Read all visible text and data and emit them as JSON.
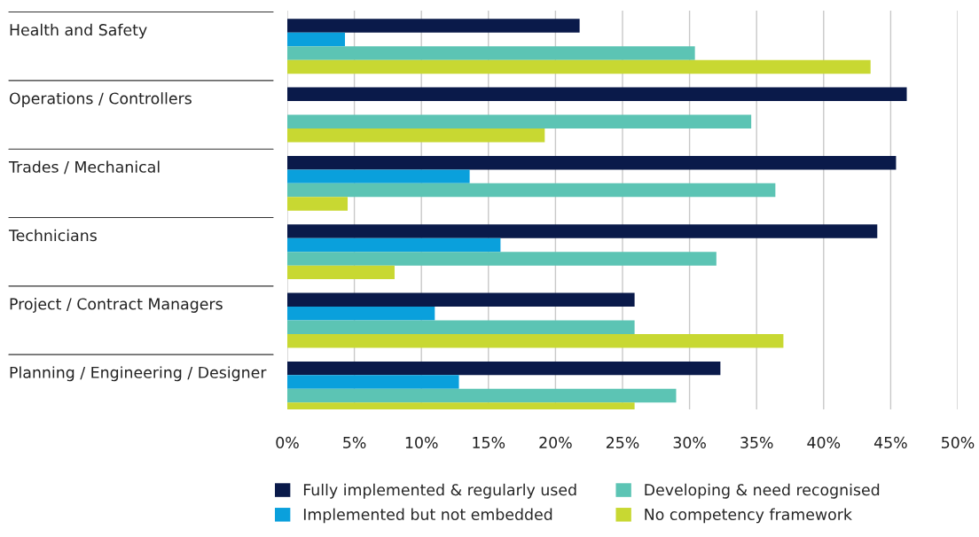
{
  "chart_data": {
    "type": "bar",
    "orientation": "horizontal",
    "categories": [
      "Health and Safety",
      "Operations / Controllers",
      "Trades / Mechanical",
      "Technicians",
      "Project / Contract Managers",
      "Planning / Engineering / Designer"
    ],
    "series": [
      {
        "name": "Fully implemented & regularly used",
        "color": "#0a1a4a",
        "values": [
          21.8,
          46.2,
          45.4,
          44.0,
          25.9,
          32.3
        ]
      },
      {
        "name": "Implemented but not embedded",
        "color": "#0aa0dc",
        "values": [
          4.3,
          null,
          13.6,
          15.9,
          11.0,
          12.8
        ]
      },
      {
        "name": "Developing & need recognised",
        "color": "#5cc4b4",
        "values": [
          30.4,
          34.6,
          36.4,
          32.0,
          25.9,
          29.0
        ]
      },
      {
        "name": "No competency framework",
        "color": "#c8d832",
        "values": [
          43.5,
          19.2,
          4.5,
          8.0,
          37.0,
          25.9
        ]
      }
    ],
    "xlim": [
      0,
      50
    ],
    "xticks": [
      {
        "value": 0,
        "label": "0%"
      },
      {
        "value": 5,
        "label": "5%"
      },
      {
        "value": 10,
        "label": "10%"
      },
      {
        "value": 15,
        "label": "15%"
      },
      {
        "value": 20,
        "label": "20%"
      },
      {
        "value": 25,
        "label": "25%"
      },
      {
        "value": 30,
        "label": "30%"
      },
      {
        "value": 35,
        "label": "35%"
      },
      {
        "value": 40,
        "label": "40%"
      },
      {
        "value": 45,
        "label": "45%"
      },
      {
        "value": 50,
        "label": "50%"
      }
    ],
    "grid": "x",
    "legend": "bottom"
  }
}
